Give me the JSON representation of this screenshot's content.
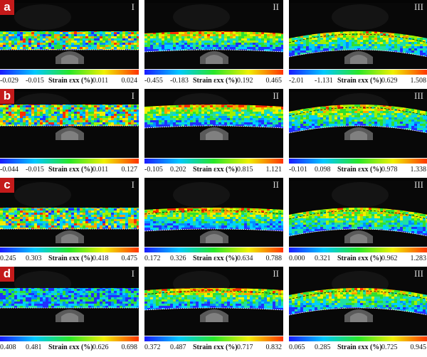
{
  "rows": [
    {
      "tag": "a",
      "panels": [
        {
          "roman": "I",
          "ticks": [
            "-0.029",
            "-0.015",
            "0.011",
            "0.024"
          ],
          "title": "Strain εxx (%)"
        },
        {
          "roman": "II",
          "ticks": [
            "-0.455",
            "-0.183",
            "0.192",
            "0.465"
          ],
          "title": "Strain εxx (%)"
        },
        {
          "roman": "III",
          "ticks": [
            "-2.01",
            "-1.131",
            "0.629",
            "1.508"
          ],
          "title": "Strain εxx (%)"
        }
      ]
    },
    {
      "tag": "b",
      "panels": [
        {
          "roman": "I",
          "ticks": [
            "-0.044",
            "-0.015",
            "0.011",
            "0.127"
          ],
          "title": "Strain εxx (%)"
        },
        {
          "roman": "II",
          "ticks": [
            "-0.105",
            "0.202",
            "0.815",
            "1.121"
          ],
          "title": "Strain εxx (%)"
        },
        {
          "roman": "III",
          "ticks": [
            "-0.101",
            "0.098",
            "0.978",
            "1.338"
          ],
          "title": "Strain εxx (%)"
        }
      ]
    },
    {
      "tag": "c",
      "panels": [
        {
          "roman": "I",
          "ticks": [
            "0.245",
            "0.303",
            "0.418",
            "0.475"
          ],
          "title": "Strain εxx (%)"
        },
        {
          "roman": "II",
          "ticks": [
            "0.172",
            "0.326",
            "0.634",
            "0.788"
          ],
          "title": "Strain εxx (%)"
        },
        {
          "roman": "III",
          "ticks": [
            "0.000",
            "0.321",
            "0.962",
            "1.283"
          ],
          "title": "Strain εxx (%)"
        }
      ]
    },
    {
      "tag": "d",
      "panels": [
        {
          "roman": "I",
          "ticks": [
            "0.408",
            "0.481",
            "0.626",
            "0.698"
          ],
          "title": "Strain εxx (%)"
        },
        {
          "roman": "II",
          "ticks": [
            "0.372",
            "0.487",
            "0.717",
            "0.832"
          ],
          "title": "Strain εxx (%)"
        },
        {
          "roman": "III",
          "ticks": [
            "0.065",
            "0.285",
            "0.725",
            "0.945"
          ],
          "title": "Strain εxx (%)"
        }
      ]
    }
  ],
  "colors": {
    "tag_background": "#c41a1a",
    "photo_background": "#050505",
    "colormap": [
      "#1a1aff",
      "#00c8ff",
      "#28e628",
      "#f0f000",
      "#ff3300"
    ]
  }
}
